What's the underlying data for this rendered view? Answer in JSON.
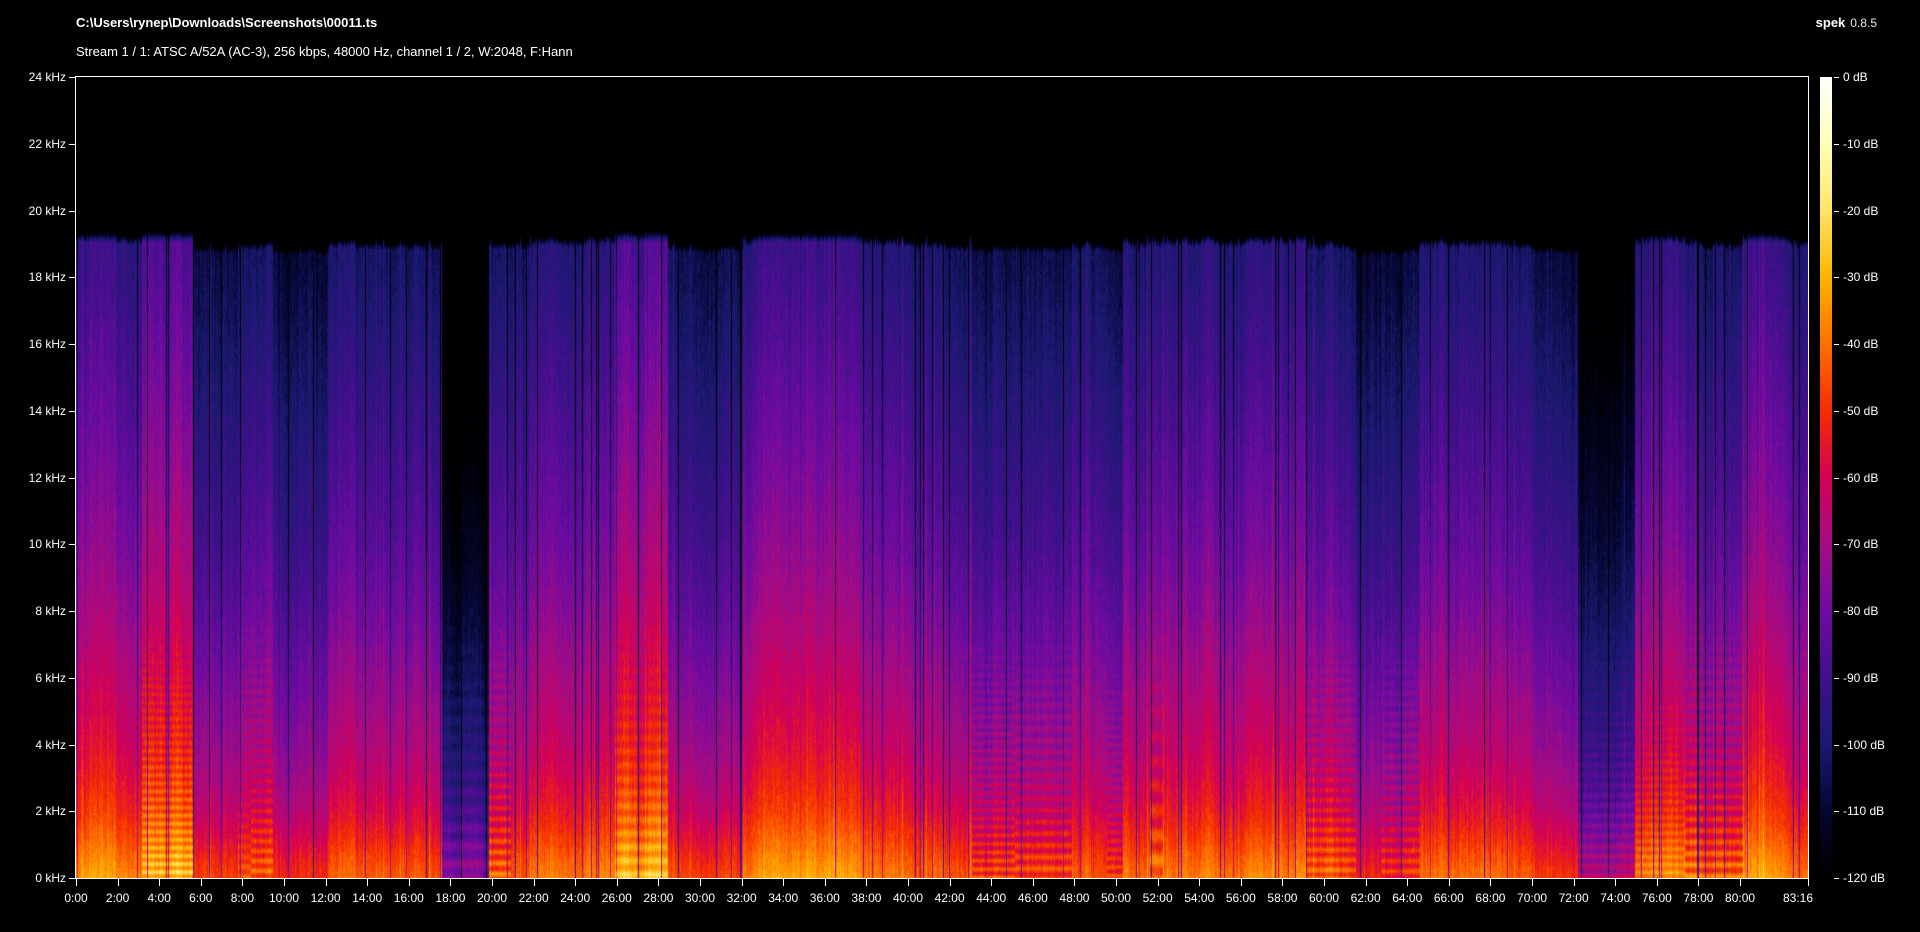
{
  "header": {
    "file_path": "C:\\Users\\rynep\\Downloads\\Screenshots\\00011.ts",
    "stream_info": "Stream 1 / 1: ATSC A/52A (AC-3), 256 kbps, 48000 Hz, channel 1 / 2, W:2048, F:Hann",
    "app_name": "spek",
    "app_version": "0.8.5"
  },
  "chart_data": {
    "type": "heatmap",
    "subtype": "audio-spectrogram",
    "title": "C:\\Users\\rynep\\Downloads\\Screenshots\\00011.ts",
    "subtitle": "Stream 1 / 1: ATSC A/52A (AC-3), 256 kbps, 48000 Hz, channel 1 / 2, W:2048, F:Hann",
    "annotation": "spek 0.8.5",
    "grid": false,
    "legend_position": "right-colorbar",
    "x_axis": {
      "unit": "mm:ss",
      "start": "0:00",
      "end": "83:16",
      "duration_seconds": 4996,
      "tick_interval_seconds": 120,
      "tick_labels": [
        "0:00",
        "2:00",
        "4:00",
        "6:00",
        "8:00",
        "10:00",
        "12:00",
        "14:00",
        "16:00",
        "18:00",
        "20:00",
        "22:00",
        "24:00",
        "26:00",
        "28:00",
        "30:00",
        "32:00",
        "34:00",
        "36:00",
        "38:00",
        "40:00",
        "42:00",
        "44:00",
        "46:00",
        "48:00",
        "50:00",
        "52:00",
        "54:00",
        "56:00",
        "58:00",
        "60:00",
        "62:00",
        "64:00",
        "66:00",
        "68:00",
        "70:00",
        "72:00",
        "74:00",
        "76:00",
        "78:00",
        "80:00",
        "83:16"
      ]
    },
    "y_axis": {
      "unit": "kHz",
      "min": 0,
      "max": 24,
      "tick_labels": [
        "24 kHz",
        "22 kHz",
        "20 kHz",
        "18 kHz",
        "16 kHz",
        "14 kHz",
        "12 kHz",
        "10 kHz",
        "8 kHz",
        "6 kHz",
        "4 kHz",
        "2 kHz",
        "0 kHz"
      ]
    },
    "colorbar": {
      "unit": "dB",
      "max": 0,
      "min": -120,
      "tick_labels": [
        "0 dB",
        "-10 dB",
        "-20 dB",
        "-30 dB",
        "-40 dB",
        "-50 dB",
        "-60 dB",
        "-70 dB",
        "-80 dB",
        "-90 dB",
        "-100 dB",
        "-110 dB",
        "-120 dB"
      ],
      "stops": [
        {
          "t": 0.0,
          "color": "#000000"
        },
        {
          "t": 0.083,
          "color": "#050530"
        },
        {
          "t": 0.167,
          "color": "#1a1a70"
        },
        {
          "t": 0.25,
          "color": "#3f108a"
        },
        {
          "t": 0.333,
          "color": "#6e0ba2"
        },
        {
          "t": 0.417,
          "color": "#a40c84"
        },
        {
          "t": 0.5,
          "color": "#d40057"
        },
        {
          "t": 0.583,
          "color": "#f52d00"
        },
        {
          "t": 0.667,
          "color": "#ff6f00"
        },
        {
          "t": 0.75,
          "color": "#ffb400"
        },
        {
          "t": 0.833,
          "color": "#ffe566"
        },
        {
          "t": 0.917,
          "color": "#ffffb8"
        },
        {
          "t": 1.0,
          "color": "#ffffff"
        }
      ]
    },
    "spectrogram": {
      "description": "AC-3 encoded broadcast audio: energy concentrated below 8 kHz, bright red-orange band below 1 kHz, vertical program striations, hard encoder lowpass cutoff near 19.3 kHz, black above cutoff",
      "lowpass_cutoff_khz": 19.3,
      "noise_floor_db": -120,
      "seed": 20240011,
      "profile_db_by_khz": [
        [
          0,
          -40
        ],
        [
          0.4,
          -43
        ],
        [
          0.8,
          -46.5
        ],
        [
          1.2,
          -50
        ],
        [
          2,
          -56
        ],
        [
          3,
          -61
        ],
        [
          4,
          -65
        ],
        [
          5,
          -68
        ],
        [
          6,
          -71
        ],
        [
          8,
          -77
        ],
        [
          10,
          -82
        ],
        [
          12,
          -86
        ],
        [
          14,
          -90
        ],
        [
          16,
          -94
        ],
        [
          18,
          -98
        ],
        [
          19.4,
          -100
        ]
      ],
      "macro_bumps": [
        {
          "c": 0.012,
          "w": 0.02,
          "a": 6
        },
        {
          "c": 0.055,
          "w": 0.012,
          "a": 3
        },
        {
          "c": 0.33,
          "w": 0.04,
          "a": 4
        },
        {
          "c": 0.42,
          "w": 0.03,
          "a": 4
        },
        {
          "c": 0.56,
          "w": 0.02,
          "a": 3
        },
        {
          "c": 0.69,
          "w": 0.02,
          "a": 3
        },
        {
          "c": 0.935,
          "w": 0.025,
          "a": 6
        },
        {
          "c": 0.975,
          "w": 0.012,
          "a": 4
        },
        {
          "c": 0.23,
          "w": 0.02,
          "a": -5
        },
        {
          "c": 0.505,
          "w": 0.015,
          "a": -4
        },
        {
          "c": 0.745,
          "w": 0.012,
          "a": -4
        },
        {
          "c": 0.875,
          "w": 0.01,
          "a": -3
        }
      ]
    }
  }
}
